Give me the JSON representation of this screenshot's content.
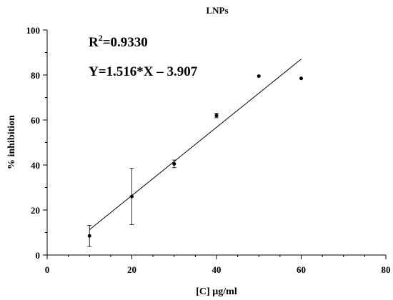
{
  "chart_data": {
    "type": "scatter",
    "title": "LNPs",
    "xlabel": "[C] µg/ml",
    "ylabel": "% inhibition",
    "xlim": [
      0,
      80
    ],
    "ylim": [
      0,
      100
    ],
    "xticks": [
      0,
      20,
      40,
      60,
      80
    ],
    "yticks": [
      0,
      20,
      40,
      60,
      80,
      100
    ],
    "xtick_labels": [
      "0",
      "20",
      "40",
      "60",
      "80"
    ],
    "ytick_labels": [
      "0",
      "20",
      "40",
      "60",
      "80",
      "100"
    ],
    "grid": false,
    "points": [
      {
        "x": 10,
        "y": 8.5,
        "err": 4.7
      },
      {
        "x": 20,
        "y": 26.0,
        "err": 12.5
      },
      {
        "x": 30,
        "y": 40.5,
        "err": 1.7
      },
      {
        "x": 40,
        "y": 62.0,
        "err": 1.0
      },
      {
        "x": 50,
        "y": 79.5,
        "err": 0
      },
      {
        "x": 60,
        "y": 78.5,
        "err": 0
      }
    ],
    "fit": {
      "slope": 1.516,
      "intercept": -3.907,
      "x_range": [
        10,
        60
      ]
    },
    "annotations": {
      "r2_prefix": "R",
      "r2_sup": "2",
      "r2_value": "=0.9330",
      "equation": "Y=1.516*X – 3.907"
    }
  }
}
